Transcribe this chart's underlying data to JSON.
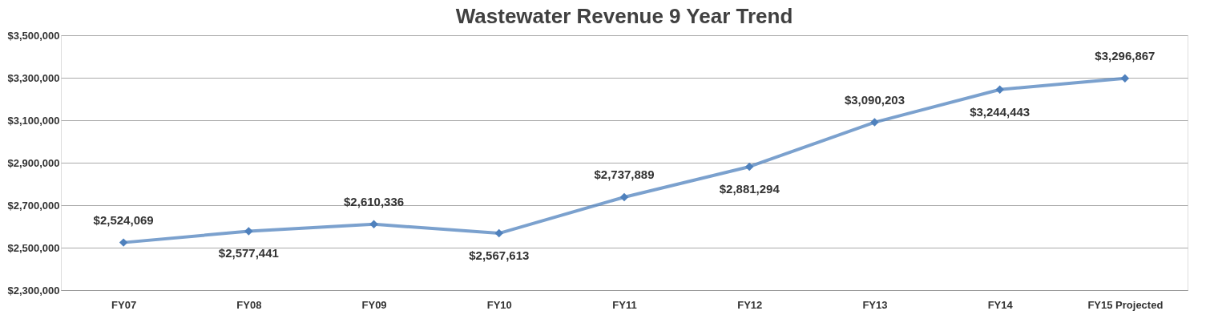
{
  "chart_data": {
    "type": "line",
    "title": "Wastewater Revenue 9 Year Trend",
    "categories": [
      "FY07",
      "FY08",
      "FY09",
      "FY10",
      "FY11",
      "FY12",
      "FY13",
      "FY14",
      "FY15 Projected"
    ],
    "series": [
      {
        "color": "#4f81bd",
        "values": [
          2524069,
          2577441,
          2610336,
          2567613,
          2737889,
          2881294,
          3090203,
          3244443,
          3296867
        ],
        "value_labels": [
          "$2,524,069",
          "$2,577,441",
          "$2,610,336",
          "$2,567,613",
          "$2,737,889",
          "$2,881,294",
          "$3,090,203",
          "$3,244,443",
          "$3,296,867"
        ]
      }
    ],
    "ylim": [
      2300000,
      3500000
    ],
    "yticks": [
      {
        "value": 2300000,
        "label": "$2,300,000"
      },
      {
        "value": 2500000,
        "label": "$2,500,000"
      },
      {
        "value": 2700000,
        "label": "$2,700,000"
      },
      {
        "value": 2900000,
        "label": "$2,900,000"
      },
      {
        "value": 3100000,
        "label": "$3,100,000"
      },
      {
        "value": 3300000,
        "label": "$3,300,000"
      },
      {
        "value": 3500000,
        "label": "$3,500,000"
      }
    ],
    "grid": "y",
    "marker": "diamond",
    "line_style": "solid"
  }
}
